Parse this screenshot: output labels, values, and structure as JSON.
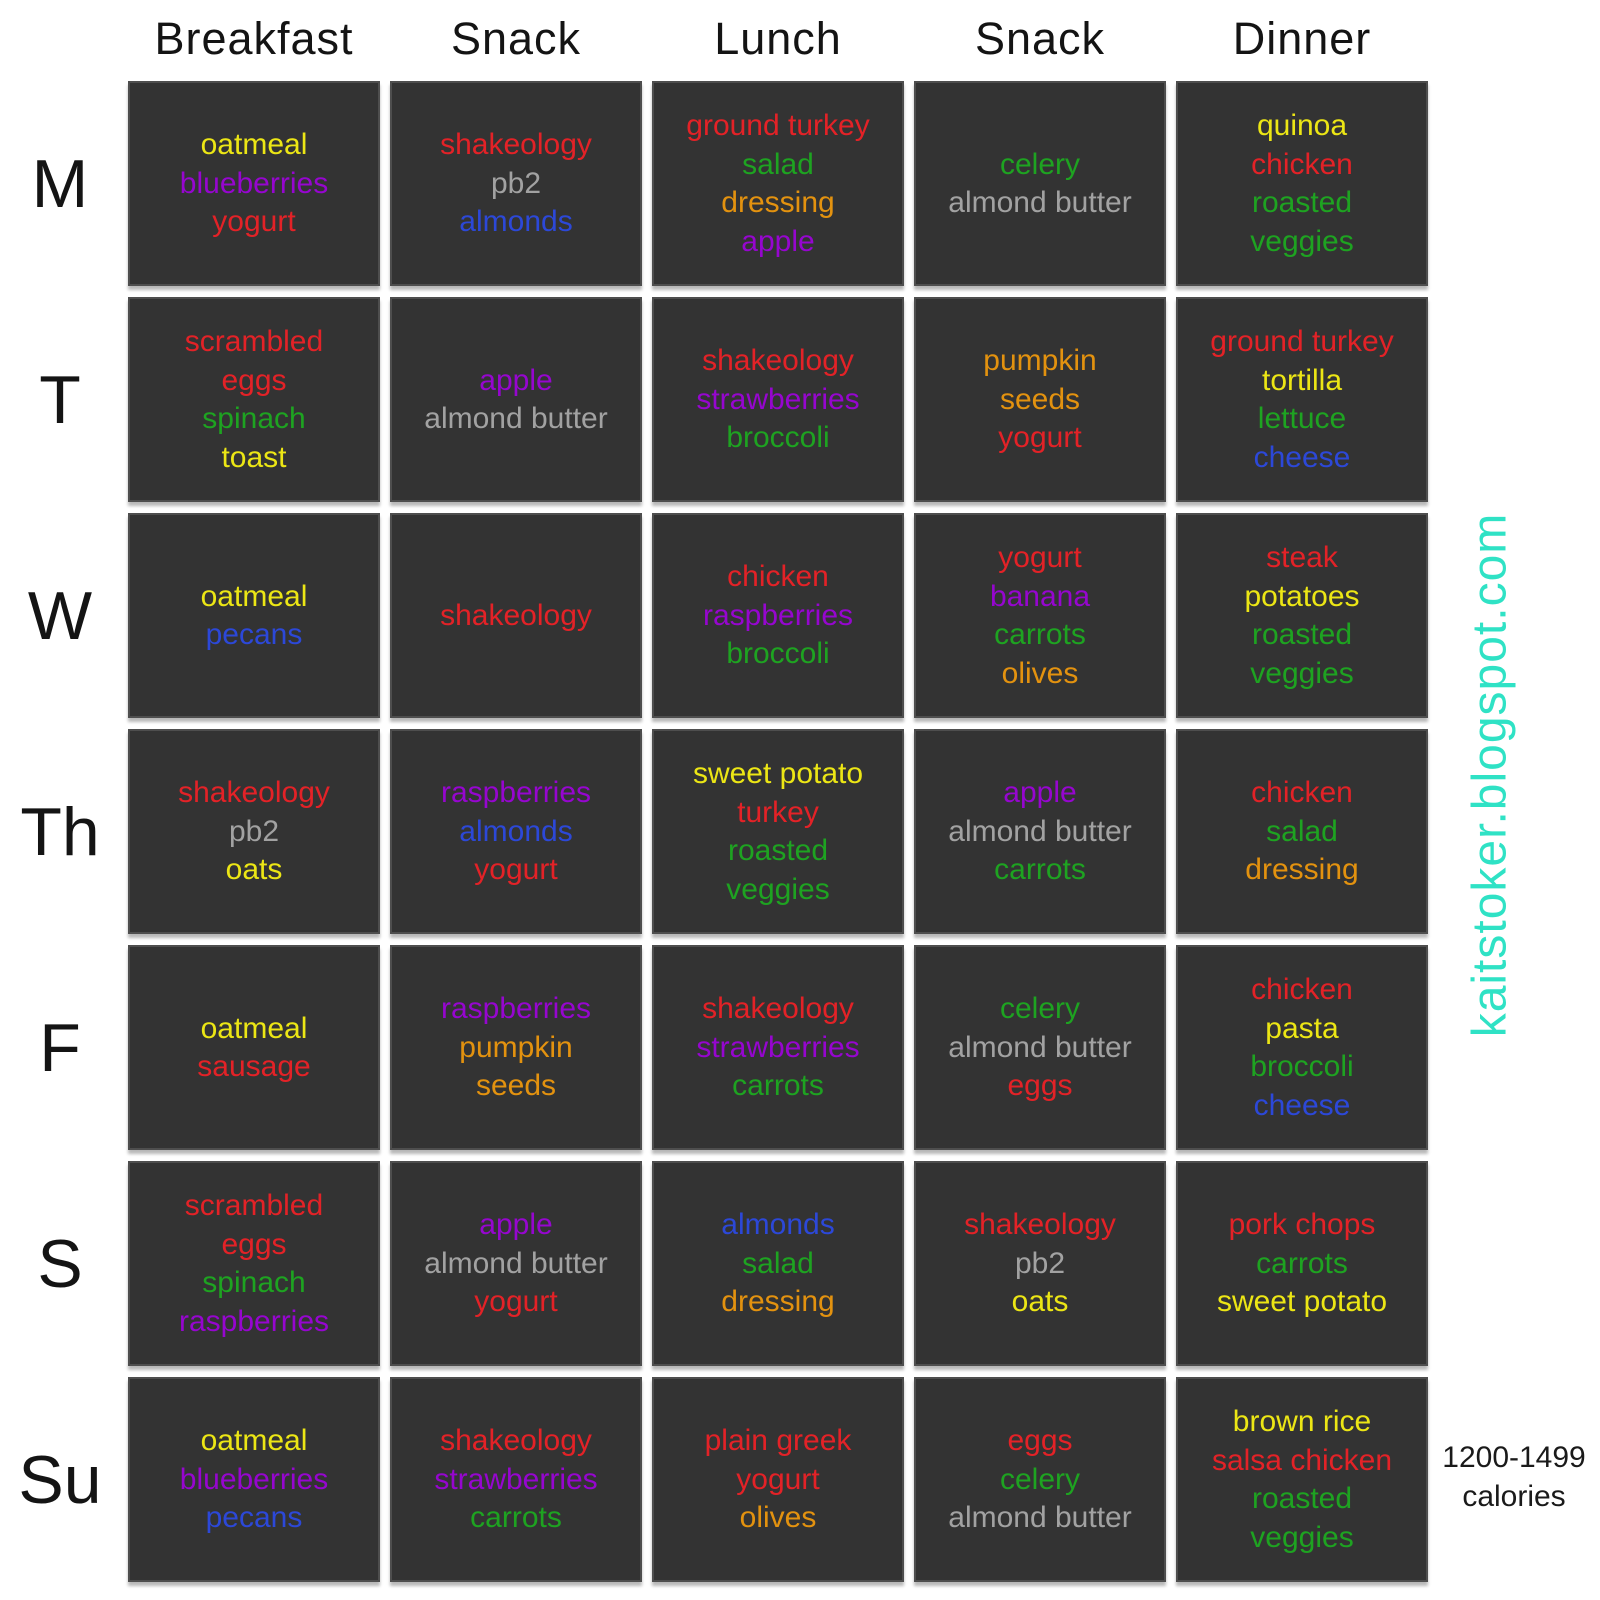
{
  "title_row": {
    "columns": [
      "Breakfast",
      "Snack",
      "Lunch",
      "Snack",
      "Dinner"
    ]
  },
  "days": [
    "M",
    "T",
    "W",
    "Th",
    "F",
    "S",
    "Su"
  ],
  "palette": {
    "red": "#e32227",
    "yellow": "#ece615",
    "purple": "#9606cf",
    "green": "#1ea321",
    "blue": "#2c48d8",
    "orange": "#e3920f",
    "gray": "#a2a2a2"
  },
  "cell_style": {
    "background": "#333333",
    "border": "#4e4e4e"
  },
  "watermark": {
    "text": "kaitstoker.blogspot.com",
    "color": "#2fe2c5"
  },
  "calories_note": {
    "range": "1200-1499",
    "unit": "calories"
  },
  "plan": [
    {
      "day": "M",
      "meals": [
        [
          {
            "text": "oatmeal",
            "color": "yellow"
          },
          {
            "text": "blueberries",
            "color": "purple"
          },
          {
            "text": "yogurt",
            "color": "red"
          }
        ],
        [
          {
            "text": "shakeology",
            "color": "red"
          },
          {
            "text": "pb2",
            "color": "gray"
          },
          {
            "text": "almonds",
            "color": "blue"
          }
        ],
        [
          {
            "text": "ground turkey",
            "color": "red"
          },
          {
            "text": "salad",
            "color": "green"
          },
          {
            "text": "dressing",
            "color": "orange"
          },
          {
            "text": "apple",
            "color": "purple"
          }
        ],
        [
          {
            "text": "celery",
            "color": "green"
          },
          {
            "text": "almond butter",
            "color": "gray"
          }
        ],
        [
          {
            "text": "quinoa",
            "color": "yellow"
          },
          {
            "text": "chicken",
            "color": "red"
          },
          {
            "text": "roasted",
            "color": "green"
          },
          {
            "text": "veggies",
            "color": "green"
          }
        ]
      ]
    },
    {
      "day": "T",
      "meals": [
        [
          {
            "text": "scrambled",
            "color": "red"
          },
          {
            "text": "eggs",
            "color": "red"
          },
          {
            "text": "spinach",
            "color": "green"
          },
          {
            "text": "toast",
            "color": "yellow"
          }
        ],
        [
          {
            "text": "apple",
            "color": "purple"
          },
          {
            "text": "almond butter",
            "color": "gray"
          }
        ],
        [
          {
            "text": "shakeology",
            "color": "red"
          },
          {
            "text": "strawberries",
            "color": "purple"
          },
          {
            "text": "broccoli",
            "color": "green"
          }
        ],
        [
          {
            "text": "pumpkin",
            "color": "orange"
          },
          {
            "text": "seeds",
            "color": "orange"
          },
          {
            "text": "yogurt",
            "color": "red"
          }
        ],
        [
          {
            "text": "ground turkey",
            "color": "red"
          },
          {
            "text": "tortilla",
            "color": "yellow"
          },
          {
            "text": "lettuce",
            "color": "green"
          },
          {
            "text": "cheese",
            "color": "blue"
          }
        ]
      ]
    },
    {
      "day": "W",
      "meals": [
        [
          {
            "text": "oatmeal",
            "color": "yellow"
          },
          {
            "text": "pecans",
            "color": "blue"
          }
        ],
        [
          {
            "text": "shakeology",
            "color": "red"
          }
        ],
        [
          {
            "text": "chicken",
            "color": "red"
          },
          {
            "text": "raspberries",
            "color": "purple"
          },
          {
            "text": "broccoli",
            "color": "green"
          }
        ],
        [
          {
            "text": "yogurt",
            "color": "red"
          },
          {
            "text": "banana",
            "color": "purple"
          },
          {
            "text": "carrots",
            "color": "green"
          },
          {
            "text": "olives",
            "color": "orange"
          }
        ],
        [
          {
            "text": "steak",
            "color": "red"
          },
          {
            "text": "potatoes",
            "color": "yellow"
          },
          {
            "text": "roasted",
            "color": "green"
          },
          {
            "text": "veggies",
            "color": "green"
          }
        ]
      ]
    },
    {
      "day": "Th",
      "meals": [
        [
          {
            "text": "shakeology",
            "color": "red"
          },
          {
            "text": "pb2",
            "color": "gray"
          },
          {
            "text": "oats",
            "color": "yellow"
          }
        ],
        [
          {
            "text": "raspberries",
            "color": "purple"
          },
          {
            "text": "almonds",
            "color": "blue"
          },
          {
            "text": "yogurt",
            "color": "red"
          }
        ],
        [
          {
            "text": "sweet potato",
            "color": "yellow"
          },
          {
            "text": "turkey",
            "color": "red"
          },
          {
            "text": "roasted",
            "color": "green"
          },
          {
            "text": "veggies",
            "color": "green"
          }
        ],
        [
          {
            "text": "apple",
            "color": "purple"
          },
          {
            "text": "almond butter",
            "color": "gray"
          },
          {
            "text": "carrots",
            "color": "green"
          }
        ],
        [
          {
            "text": "chicken",
            "color": "red"
          },
          {
            "text": "salad",
            "color": "green"
          },
          {
            "text": "dressing",
            "color": "orange"
          }
        ]
      ]
    },
    {
      "day": "F",
      "meals": [
        [
          {
            "text": "oatmeal",
            "color": "yellow"
          },
          {
            "text": "sausage",
            "color": "red"
          }
        ],
        [
          {
            "text": "raspberries",
            "color": "purple"
          },
          {
            "text": "pumpkin",
            "color": "orange"
          },
          {
            "text": "seeds",
            "color": "orange"
          }
        ],
        [
          {
            "text": "shakeology",
            "color": "red"
          },
          {
            "text": "strawberries",
            "color": "purple"
          },
          {
            "text": "carrots",
            "color": "green"
          }
        ],
        [
          {
            "text": "celery",
            "color": "green"
          },
          {
            "text": "almond butter",
            "color": "gray"
          },
          {
            "text": "eggs",
            "color": "red"
          }
        ],
        [
          {
            "text": "chicken",
            "color": "red"
          },
          {
            "text": "pasta",
            "color": "yellow"
          },
          {
            "text": "broccoli",
            "color": "green"
          },
          {
            "text": "cheese",
            "color": "blue"
          }
        ]
      ]
    },
    {
      "day": "S",
      "meals": [
        [
          {
            "text": "scrambled",
            "color": "red"
          },
          {
            "text": "eggs",
            "color": "red"
          },
          {
            "text": "spinach",
            "color": "green"
          },
          {
            "text": "raspberries",
            "color": "purple"
          }
        ],
        [
          {
            "text": "apple",
            "color": "purple"
          },
          {
            "text": "almond butter",
            "color": "gray"
          },
          {
            "text": "yogurt",
            "color": "red"
          }
        ],
        [
          {
            "text": "almonds",
            "color": "blue"
          },
          {
            "text": "salad",
            "color": "green"
          },
          {
            "text": "dressing",
            "color": "orange"
          }
        ],
        [
          {
            "text": "shakeology",
            "color": "red"
          },
          {
            "text": "pb2",
            "color": "gray"
          },
          {
            "text": "oats",
            "color": "yellow"
          }
        ],
        [
          {
            "text": "pork chops",
            "color": "red"
          },
          {
            "text": "carrots",
            "color": "green"
          },
          {
            "text": "sweet potato",
            "color": "yellow"
          }
        ]
      ]
    },
    {
      "day": "Su",
      "meals": [
        [
          {
            "text": "oatmeal",
            "color": "yellow"
          },
          {
            "text": "blueberries",
            "color": "purple"
          },
          {
            "text": "pecans",
            "color": "blue"
          }
        ],
        [
          {
            "text": "shakeology",
            "color": "red"
          },
          {
            "text": "strawberries",
            "color": "purple"
          },
          {
            "text": "carrots",
            "color": "green"
          }
        ],
        [
          {
            "text": "plain greek",
            "color": "red"
          },
          {
            "text": "yogurt",
            "color": "red"
          },
          {
            "text": "olives",
            "color": "orange"
          }
        ],
        [
          {
            "text": "eggs",
            "color": "red"
          },
          {
            "text": "celery",
            "color": "green"
          },
          {
            "text": "almond butter",
            "color": "gray"
          }
        ],
        [
          {
            "text": "brown rice",
            "color": "yellow"
          },
          {
            "text": "salsa chicken",
            "color": "red"
          },
          {
            "text": "roasted",
            "color": "green"
          },
          {
            "text": "veggies",
            "color": "green"
          }
        ]
      ]
    }
  ]
}
